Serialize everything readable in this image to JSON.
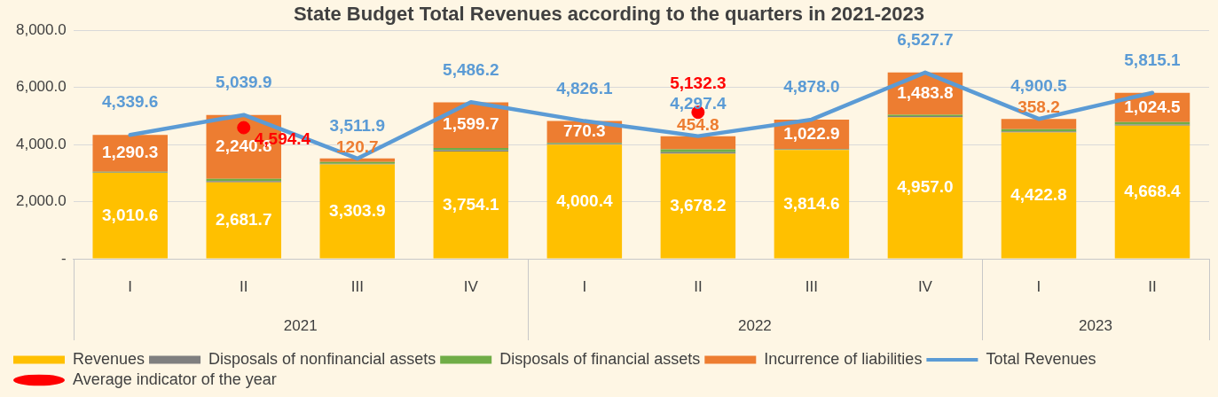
{
  "chart_data": {
    "type": "bar",
    "title": "State Budget Total Revenues according to the quarters in 2021-2023",
    "categories": [
      "I",
      "II",
      "III",
      "IV",
      "I",
      "II",
      "III",
      "IV",
      "I",
      "II"
    ],
    "annotations": [
      "2021",
      "2022",
      "2023"
    ],
    "stacked": true,
    "grid": "y",
    "legend": "bottom",
    "ylim": [
      0,
      8000
    ],
    "yticks": [
      {
        "value": 0,
        "label": "-"
      },
      {
        "value": 2000,
        "label": "2,000.0"
      },
      {
        "value": 4000,
        "label": "4,000.0"
      },
      {
        "value": 6000,
        "label": "6,000.0"
      },
      {
        "value": 8000,
        "label": "8,000.0"
      }
    ],
    "series": [
      {
        "name": "Revenues",
        "color": "#ffc000",
        "values": [
          3010.6,
          2681.7,
          3303.9,
          3754.1,
          4000.4,
          3678.2,
          3814.6,
          4957.0,
          4422.8,
          4668.4
        ],
        "value_labels": [
          "3,010.6",
          "2,681.7",
          "3,303.9",
          "3,754.1",
          "4,000.4",
          "3,678.2",
          "3,814.6",
          "4,957.0",
          "4,422.8",
          "4,668.4"
        ]
      },
      {
        "name": "Disposals of nonfinancial assets",
        "color": "#7f7f7f",
        "values": [
          20,
          40,
          30,
          50,
          30,
          60,
          20,
          40,
          40,
          40
        ]
      },
      {
        "name": "Disposals of financial assets",
        "color": "#70ad47",
        "values": [
          20,
          80,
          60,
          80,
          30,
          100,
          20,
          50,
          80,
          80
        ]
      },
      {
        "name": "Incurrence of liabilities",
        "color": "#ed7d31",
        "values": [
          1290.3,
          2240.8,
          120.7,
          1599.7,
          770.3,
          454.8,
          1022.9,
          1483.8,
          358.2,
          1024.5
        ],
        "value_labels": [
          "1,290.3",
          "2,240.8",
          "120.7",
          "1,599.7",
          "770.3",
          "454.8",
          "1,022.9",
          "1,483.8",
          "358.2",
          "1,024.5"
        ]
      },
      {
        "name": "Total Revenues",
        "type": "line",
        "color": "#5b9bd5",
        "marker": "none",
        "line_style": "solid",
        "values": [
          4339.6,
          5039.9,
          3511.9,
          5486.2,
          4826.1,
          4297.4,
          4878.0,
          6527.7,
          4900.5,
          5815.1
        ],
        "value_labels": [
          "4,339.6",
          "5,039.9",
          "3,511.9",
          "5,486.2",
          "4,826.1",
          "4,297.4",
          "4,878.0",
          "6,527.7",
          "4,900.5",
          "5,815.1"
        ]
      },
      {
        "name": "Average indicator of the year",
        "type": "scatter",
        "color": "#ff0000",
        "marker": "circle",
        "values": [
          null,
          4594.4,
          null,
          null,
          null,
          5132.3,
          null,
          null,
          null,
          null
        ],
        "value_labels": [
          null,
          "4,594.4",
          null,
          null,
          null,
          "5,132.3",
          null,
          null,
          null,
          null
        ]
      }
    ]
  }
}
